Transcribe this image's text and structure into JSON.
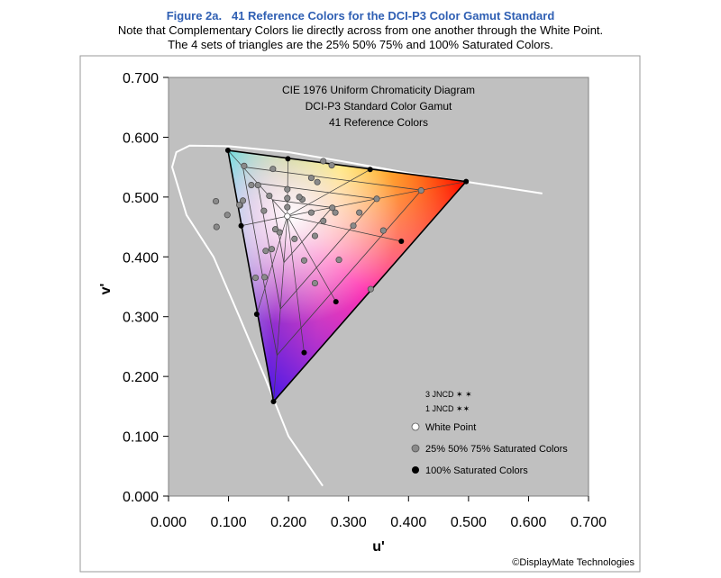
{
  "header": {
    "figure_title": "Figure 2a.   41 Reference Colors for the DCI-P3 Color Gamut Standard",
    "note_lines": [
      "Note that Complementary Colors lie directly across from one another through the White Point.",
      "The 4 sets of triangles are the 25% 50% 75% and 100% Saturated Colors."
    ]
  },
  "chart_data": {
    "type": "scatter",
    "title_lines": [
      "CIE 1976 Uniform Chromaticity Diagram",
      "DCI-P3 Standard Color Gamut",
      "41 Reference Colors"
    ],
    "xlabel": "u'",
    "ylabel": "v'",
    "xlim": [
      0.0,
      0.7
    ],
    "ylim": [
      0.0,
      0.7
    ],
    "x_ticks": [
      "0.000",
      "0.100",
      "0.200",
      "0.300",
      "0.400",
      "0.500",
      "0.600",
      "0.700"
    ],
    "y_ticks": [
      "0.000",
      "0.100",
      "0.200",
      "0.300",
      "0.400",
      "0.500",
      "0.600",
      "0.700"
    ],
    "grid": false,
    "plot_background": "#c0c0c0",
    "spectral_locus": {
      "color": "#ffffff",
      "points": [
        [
          0.257,
          0.017
        ],
        [
          0.2,
          0.1
        ],
        [
          0.16,
          0.2
        ],
        [
          0.118,
          0.3
        ],
        [
          0.075,
          0.4
        ],
        [
          0.03,
          0.47
        ],
        [
          0.006,
          0.55
        ],
        [
          0.013,
          0.575
        ],
        [
          0.035,
          0.586
        ],
        [
          0.1,
          0.585
        ],
        [
          0.2,
          0.575
        ],
        [
          0.3,
          0.558
        ],
        [
          0.4,
          0.54
        ],
        [
          0.5,
          0.525
        ],
        [
          0.623,
          0.506
        ]
      ]
    },
    "gamut": {
      "primaries": {
        "red": [
          0.496,
          0.526
        ],
        "green": [
          0.099,
          0.578
        ],
        "blue": [
          0.175,
          0.158
        ]
      },
      "white_point": [
        0.198,
        0.468
      ]
    },
    "series": [
      {
        "name": "White Point",
        "color": "#ffffff",
        "points": [
          [
            0.198,
            0.468
          ]
        ]
      },
      {
        "name": "25% 50% 75% Saturated Colors",
        "color": "#8a8a8a",
        "points": [
          [
            0.273,
            0.482
          ],
          [
            0.347,
            0.497
          ],
          [
            0.421,
            0.511
          ],
          [
            0.124,
            0.494
          ],
          [
            0.149,
            0.52
          ],
          [
            0.174,
            0.547
          ],
          [
            0.185,
            0.441
          ],
          [
            0.172,
            0.413
          ],
          [
            0.16,
            0.366
          ],
          [
            0.223,
            0.496
          ],
          [
            0.248,
            0.525
          ],
          [
            0.272,
            0.553
          ],
          [
            0.159,
            0.477
          ],
          [
            0.119,
            0.486
          ],
          [
            0.079,
            0.493
          ],
          [
            0.244,
            0.435
          ],
          [
            0.284,
            0.395
          ],
          [
            0.337,
            0.346
          ],
          [
            0.198,
            0.483
          ],
          [
            0.198,
            0.498
          ],
          [
            0.198,
            0.513
          ],
          [
            0.218,
            0.5
          ],
          [
            0.238,
            0.532
          ],
          [
            0.258,
            0.56
          ],
          [
            0.178,
            0.446
          ],
          [
            0.162,
            0.41
          ],
          [
            0.145,
            0.365
          ],
          [
            0.238,
            0.474
          ],
          [
            0.278,
            0.474
          ],
          [
            0.318,
            0.474
          ],
          [
            0.118,
            0.487
          ],
          [
            0.098,
            0.47
          ],
          [
            0.08,
            0.45
          ],
          [
            0.258,
            0.46
          ],
          [
            0.308,
            0.452
          ],
          [
            0.358,
            0.444
          ],
          [
            0.168,
            0.502
          ],
          [
            0.138,
            0.52
          ],
          [
            0.126,
            0.552
          ],
          [
            0.21,
            0.43
          ],
          [
            0.226,
            0.394
          ],
          [
            0.244,
            0.356
          ]
        ]
      },
      {
        "name": "100% Saturated Colors",
        "color": "#000000",
        "points": [
          [
            0.496,
            0.526
          ],
          [
            0.099,
            0.578
          ],
          [
            0.175,
            0.158
          ],
          [
            0.199,
            0.564
          ],
          [
            0.336,
            0.546
          ],
          [
            0.121,
            0.452
          ],
          [
            0.147,
            0.304
          ],
          [
            0.388,
            0.426
          ],
          [
            0.279,
            0.325
          ],
          [
            0.226,
            0.24
          ]
        ]
      }
    ],
    "legend": {
      "placement": "bottom-right",
      "jncd_items": [
        {
          "label": "3 JNCD",
          "marks": "✶ ✶"
        },
        {
          "label": "1 JNCD",
          "marks": "✶✶"
        }
      ],
      "items": [
        "White Point",
        "25% 50% 75% Saturated Colors",
        "100% Saturated Colors"
      ]
    }
  },
  "footer": {
    "credit": "©DisplayMate Technologies"
  }
}
